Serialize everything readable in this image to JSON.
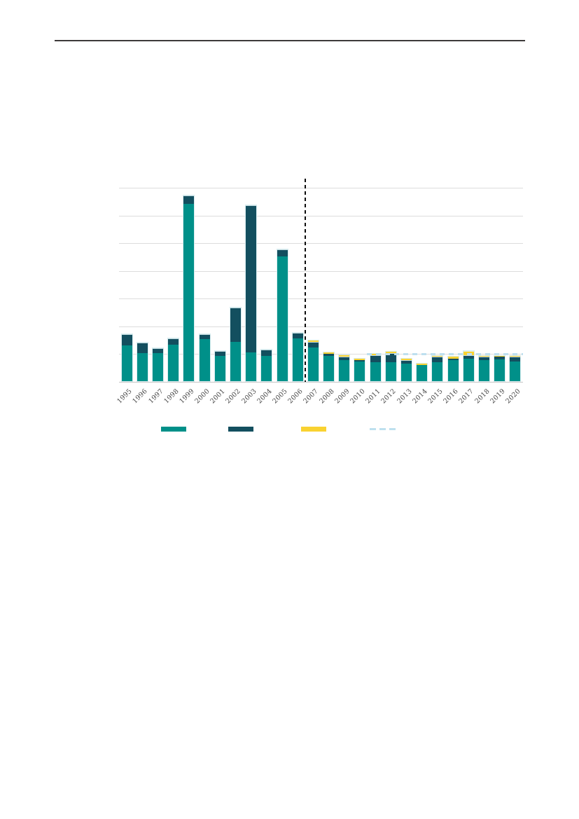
{
  "page": {
    "kind": "report-figure-page",
    "top_rule_color": "#3d3a3a",
    "background": "#ffffff"
  },
  "chart_data": {
    "type": "bar",
    "stacked": true,
    "title": "",
    "xlabel": "",
    "ylabel": "",
    "y_axis_labels_visible": false,
    "value_scale": "gridline-intervals (1 unit = one horizontal gridline gap, no numeric axis labels shown)",
    "ylim": [
      0,
      7
    ],
    "gridline_count": 8,
    "grid_color": "#dddddd",
    "categories": [
      "1995",
      "1996",
      "1997",
      "1998",
      "1999",
      "2000",
      "2001",
      "2002",
      "2003",
      "2004",
      "2005",
      "2006",
      "2007",
      "2008",
      "2009",
      "2010",
      "2011",
      "2012",
      "2013",
      "2014",
      "2015",
      "2016",
      "2017",
      "2018",
      "2019",
      "2020"
    ],
    "series": [
      {
        "name": "teal-series",
        "color": "#009089",
        "values": [
          1.34,
          1.06,
          1.06,
          1.36,
          6.44,
          1.57,
          0.94,
          1.44,
          1.04,
          0.94,
          4.55,
          1.59,
          1.26,
          0.96,
          0.81,
          0.76,
          0.73,
          0.71,
          0.66,
          0.63,
          0.71,
          0.81,
          0.86,
          0.81,
          0.83,
          0.76
        ]
      },
      {
        "name": "dark-teal-series",
        "color": "#134f5f",
        "values": [
          0.4,
          0.38,
          0.18,
          0.23,
          0.3,
          0.18,
          0.2,
          1.26,
          5.36,
          0.25,
          0.25,
          0.2,
          0.2,
          0.08,
          0.13,
          0.05,
          0.25,
          0.35,
          0.15,
          0.0,
          0.23,
          0.05,
          0.13,
          0.13,
          0.1,
          0.18
        ]
      },
      {
        "name": "yellow-series",
        "color": "#f9d231",
        "values": [
          0,
          0,
          0,
          0,
          0,
          0,
          0,
          0,
          0,
          0,
          0,
          0,
          0.05,
          0.05,
          0.05,
          0.05,
          0.05,
          0.05,
          0.05,
          0.05,
          0.03,
          0.08,
          0.15,
          0.03,
          0.03,
          0.03
        ]
      }
    ],
    "reference_line": {
      "style": "dashed",
      "color": "#bee0ef",
      "value": 1.0,
      "from_category": "2011",
      "to_category": "2020"
    },
    "divider_line": {
      "style": "dashed",
      "color": "#0d0d0d",
      "between_categories": [
        "2006",
        "2007"
      ]
    },
    "legend_position": "bottom",
    "legend": [
      {
        "name": "teal-series",
        "swatch": "bar",
        "color": "#009089",
        "label": ""
      },
      {
        "name": "dark-teal-series",
        "swatch": "bar",
        "color": "#134f5f",
        "label": ""
      },
      {
        "name": "yellow-series",
        "swatch": "bar",
        "color": "#f9d231",
        "label": ""
      },
      {
        "name": "reference-line",
        "swatch": "dashed-line",
        "color": "#bee0ef",
        "label": ""
      }
    ],
    "tick_label_color": "#454545"
  }
}
